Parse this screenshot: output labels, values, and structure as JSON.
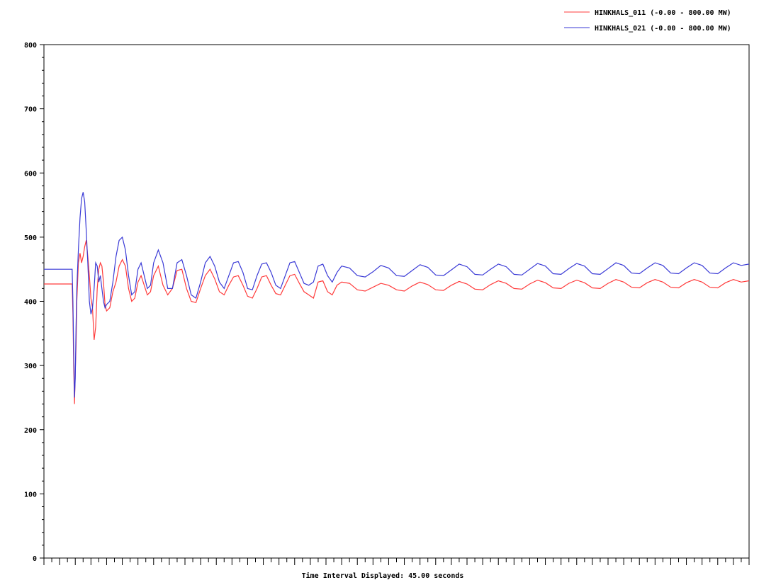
{
  "chart_data": {
    "type": "line",
    "title": "",
    "xlabel": "Time Interval Displayed: 45.00 seconds",
    "ylabel": "",
    "xlim": [
      0,
      45
    ],
    "ylim": [
      0,
      800
    ],
    "yticks": [
      "0",
      "100",
      "200",
      "300",
      "400",
      "500",
      "600",
      "700",
      "800"
    ],
    "grid": false,
    "legend_position": "top-right",
    "series": [
      {
        "name": "HINKHALS_011 (-0.00 - 800.00 MW)",
        "color": "#ff3b3b",
        "x": [
          0,
          1.8,
          1.85,
          1.9,
          1.95,
          2.0,
          2.05,
          2.1,
          2.2,
          2.3,
          2.4,
          2.5,
          2.6,
          2.7,
          2.8,
          2.9,
          3.0,
          3.1,
          3.2,
          3.3,
          3.4,
          3.5,
          3.6,
          3.7,
          3.8,
          3.9,
          4.0,
          4.2,
          4.4,
          4.6,
          4.8,
          5.0,
          5.2,
          5.4,
          5.6,
          5.8,
          6.0,
          6.2,
          6.4,
          6.6,
          6.8,
          7.0,
          7.3,
          7.6,
          7.9,
          8.2,
          8.5,
          8.8,
          9.1,
          9.4,
          9.7,
          10.0,
          10.3,
          10.6,
          10.9,
          11.2,
          11.5,
          11.8,
          12.1,
          12.4,
          12.7,
          13.0,
          13.3,
          13.6,
          13.9,
          14.2,
          14.5,
          14.8,
          15.1,
          15.4,
          15.7,
          16.0,
          16.3,
          16.6,
          16.9,
          17.2,
          17.5,
          17.8,
          18.1,
          18.4,
          18.7,
          19.0,
          19.5,
          20.0,
          20.5,
          21.0,
          21.5,
          22.0,
          22.5,
          23.0,
          23.5,
          24.0,
          24.5,
          25.0,
          25.5,
          26.0,
          26.5,
          27.0,
          27.5,
          28.0,
          28.5,
          29.0,
          29.5,
          30.0,
          30.5,
          31.0,
          31.5,
          32.0,
          32.5,
          33.0,
          33.5,
          34.0,
          34.5,
          35.0,
          35.5,
          36.0,
          36.5,
          37.0,
          37.5,
          38.0,
          38.5,
          39.0,
          39.5,
          40.0,
          40.5,
          41.0,
          41.5,
          42.0,
          42.5,
          43.0,
          43.5,
          44.0,
          44.5,
          45.0
        ],
        "values": [
          427,
          427,
          380,
          300,
          240,
          290,
          330,
          400,
          460,
          475,
          460,
          470,
          485,
          495,
          470,
          440,
          405,
          390,
          340,
          360,
          420,
          450,
          460,
          455,
          430,
          395,
          385,
          390,
          415,
          430,
          455,
          465,
          455,
          420,
          400,
          405,
          430,
          440,
          425,
          410,
          415,
          440,
          455,
          425,
          410,
          420,
          448,
          450,
          420,
          400,
          398,
          420,
          440,
          450,
          435,
          415,
          410,
          425,
          438,
          440,
          425,
          408,
          405,
          420,
          438,
          440,
          425,
          412,
          410,
          425,
          440,
          442,
          428,
          415,
          410,
          405,
          430,
          432,
          415,
          410,
          425,
          430,
          428,
          418,
          416,
          422,
          428,
          425,
          418,
          416,
          424,
          430,
          426,
          418,
          417,
          425,
          431,
          427,
          419,
          418,
          426,
          432,
          428,
          420,
          419,
          427,
          433,
          429,
          421,
          420,
          428,
          433,
          429,
          421,
          420,
          428,
          434,
          430,
          422,
          421,
          429,
          434,
          430,
          422,
          421,
          429,
          434,
          430,
          422,
          421,
          429,
          434,
          430,
          432
        ]
      },
      {
        "name": "HINKHALS_021 (-0.00 - 800.00 MW)",
        "color": "#3a3ad6",
        "x": [
          0,
          1.8,
          1.85,
          1.9,
          1.95,
          2.0,
          2.05,
          2.1,
          2.2,
          2.3,
          2.4,
          2.5,
          2.6,
          2.7,
          2.8,
          2.9,
          3.0,
          3.1,
          3.2,
          3.3,
          3.4,
          3.5,
          3.6,
          3.7,
          3.8,
          3.9,
          4.0,
          4.2,
          4.4,
          4.6,
          4.8,
          5.0,
          5.2,
          5.4,
          5.6,
          5.8,
          6.0,
          6.2,
          6.4,
          6.6,
          6.8,
          7.0,
          7.3,
          7.6,
          7.9,
          8.2,
          8.5,
          8.8,
          9.1,
          9.4,
          9.7,
          10.0,
          10.3,
          10.6,
          10.9,
          11.2,
          11.5,
          11.8,
          12.1,
          12.4,
          12.7,
          13.0,
          13.3,
          13.6,
          13.9,
          14.2,
          14.5,
          14.8,
          15.1,
          15.4,
          15.7,
          16.0,
          16.3,
          16.6,
          16.9,
          17.2,
          17.5,
          17.8,
          18.1,
          18.4,
          18.7,
          19.0,
          19.5,
          20.0,
          20.5,
          21.0,
          21.5,
          22.0,
          22.5,
          23.0,
          23.5,
          24.0,
          24.5,
          25.0,
          25.5,
          26.0,
          26.5,
          27.0,
          27.5,
          28.0,
          28.5,
          29.0,
          29.5,
          30.0,
          30.5,
          31.0,
          31.5,
          32.0,
          32.5,
          33.0,
          33.5,
          34.0,
          34.5,
          35.0,
          35.5,
          36.0,
          36.5,
          37.0,
          37.5,
          38.0,
          38.5,
          39.0,
          39.5,
          40.0,
          40.5,
          41.0,
          41.5,
          42.0,
          42.5,
          43.0,
          43.5,
          44.0,
          44.5,
          45.0
        ],
        "values": [
          450,
          450,
          400,
          320,
          250,
          280,
          360,
          420,
          480,
          530,
          560,
          570,
          555,
          510,
          460,
          400,
          380,
          390,
          420,
          460,
          455,
          430,
          440,
          420,
          400,
          390,
          395,
          400,
          430,
          470,
          495,
          500,
          480,
          440,
          410,
          415,
          450,
          460,
          440,
          420,
          425,
          460,
          480,
          460,
          420,
          420,
          460,
          465,
          440,
          410,
          405,
          430,
          460,
          470,
          455,
          430,
          420,
          440,
          460,
          462,
          445,
          420,
          418,
          440,
          458,
          460,
          445,
          425,
          420,
          440,
          460,
          462,
          445,
          428,
          425,
          430,
          455,
          458,
          440,
          430,
          445,
          455,
          452,
          440,
          438,
          446,
          456,
          452,
          440,
          439,
          448,
          457,
          453,
          441,
          440,
          449,
          458,
          454,
          442,
          441,
          450,
          458,
          454,
          442,
          441,
          450,
          459,
          455,
          443,
          442,
          451,
          459,
          455,
          443,
          442,
          451,
          460,
          456,
          444,
          443,
          452,
          460,
          456,
          444,
          443,
          452,
          460,
          456,
          444,
          443,
          452,
          460,
          456,
          458
        ]
      }
    ]
  }
}
